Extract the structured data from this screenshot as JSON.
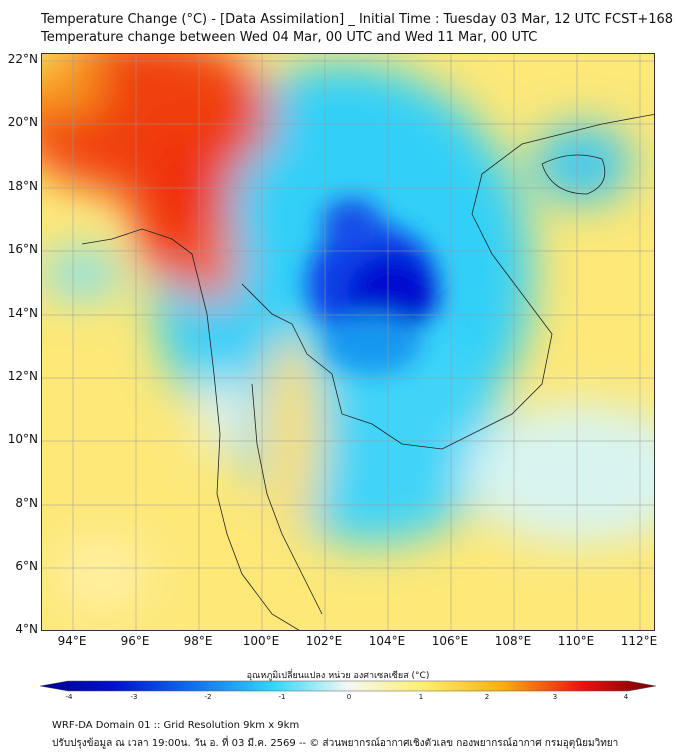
{
  "header": {
    "title": "Temperature Change (°C) - [Data Assimilation] _ Initial Time : Tuesday 03 Mar, 12 UTC FCST+168",
    "subtitle": "Temperature change between Wed 04 Mar, 00 UTC and Wed 11 Mar, 00 UTC"
  },
  "map": {
    "lat_labels": [
      "22°N",
      "20°N",
      "18°N",
      "16°N",
      "14°N",
      "12°N",
      "10°N",
      "8°N",
      "6°N",
      "4°N"
    ],
    "lon_labels": [
      "94°E",
      "96°E",
      "98°E",
      "100°E",
      "102°E",
      "104°E",
      "106°E",
      "108°E",
      "110°E",
      "112°E"
    ],
    "lat_range": [
      4,
      22.2
    ],
    "lon_range": [
      93,
      112.5
    ],
    "colors": {
      "cold_max": "#0000c8",
      "cool": "#30c8f8",
      "neutral": "#fff8c0",
      "warm": "#f8d030",
      "hot": "#e82010"
    }
  },
  "colorbar": {
    "label": "อุณหภูมิเปลี่ยนแปลง หน่วย องศาเซลเซียส (°C)",
    "ticks": [
      "-4",
      "-3",
      "-2",
      "-1",
      "0",
      "1",
      "2",
      "3",
      "4"
    ],
    "range": [
      -4,
      4
    ]
  },
  "footer": {
    "line1": "WRF-DA Domain 01 :: Grid Resolution 9km x 9km",
    "line2": "ปรับปรุงข้อมูล ณ เวลา 19:00น. วัน อ. ที่ 03 มี.ค. 2569 -- © ส่วนพยากรณ์อากาศเชิงตัวเลข กองพยากรณ์อากาศ กรมอุตุนิยมวิทยา"
  }
}
